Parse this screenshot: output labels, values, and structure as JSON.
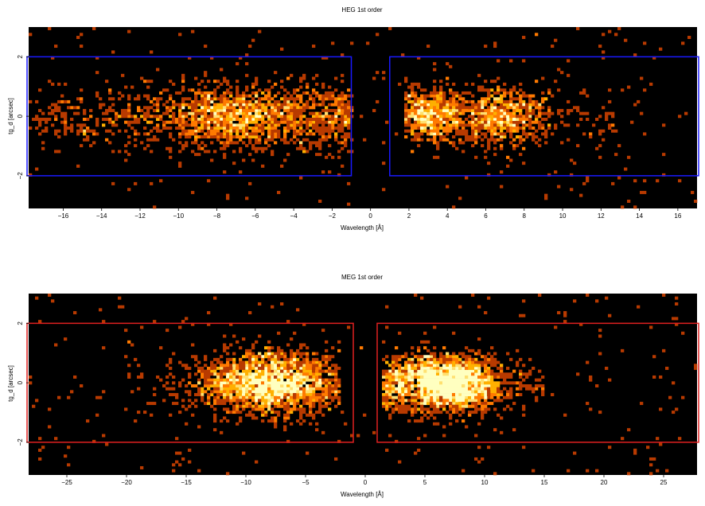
{
  "chart_data": [
    {
      "type": "heatmap",
      "title": "HEG 1st order",
      "xlabel": "Wavelength [Å]",
      "ylabel": "tg_d [arcsec]",
      "xlim": [
        -17.8,
        17.0
      ],
      "ylim": [
        -3.1,
        3.0
      ],
      "x_ticks": [
        -16,
        -14,
        -12,
        -10,
        -8,
        -6,
        -4,
        -2,
        0,
        2,
        4,
        6,
        8,
        10,
        12,
        14,
        16
      ],
      "y_ticks": [
        -2,
        0,
        2
      ],
      "background": "#000000",
      "colormap": [
        "#b83a00",
        "#ff7a00",
        "#ffb000",
        "#ffe070",
        "#ffffc0"
      ],
      "extraction_regions": {
        "color": "#1a1aff",
        "boxes": [
          {
            "x0": -18.0,
            "x1": -1.0,
            "y0": -2.0,
            "y1": 2.0
          },
          {
            "x0": 1.0,
            "x1": 17.5,
            "y0": -2.0,
            "y1": 2.0
          }
        ]
      },
      "clusters": [
        {
          "x0": -17.8,
          "x1": -1.0,
          "peak": -4.5,
          "width": 5.0,
          "ysd": 0.55,
          "n": 1400
        },
        {
          "x0": -10.0,
          "x1": -5.0,
          "peak": -7.5,
          "width": 2.0,
          "ysd": 0.5,
          "n": 450
        },
        {
          "x0": 1.8,
          "x1": 5.5,
          "peak": 3.0,
          "width": 1.2,
          "ysd": 0.45,
          "n": 700
        },
        {
          "x0": 5.2,
          "x1": 9.5,
          "peak": 6.8,
          "width": 1.2,
          "ysd": 0.45,
          "n": 650
        },
        {
          "x0": 9.0,
          "x1": 13.0,
          "peak": 10.5,
          "width": 2.5,
          "ysd": 0.6,
          "n": 70
        }
      ]
    },
    {
      "type": "heatmap",
      "title": "MEG 1st order",
      "xlabel": "Wavelength [Å]",
      "ylabel": "tg_d [arcsec]",
      "xlim": [
        -28.2,
        27.8
      ],
      "ylim": [
        -3.1,
        3.0
      ],
      "x_ticks": [
        -25,
        -20,
        -15,
        -10,
        -5,
        0,
        5,
        10,
        15,
        20,
        25
      ],
      "y_ticks": [
        -2,
        0,
        2
      ],
      "background": "#000000",
      "colormap": [
        "#b83a00",
        "#ff7a00",
        "#ffb000",
        "#ffe070",
        "#ffffc0"
      ],
      "extraction_regions": {
        "color": "#e02020",
        "boxes": [
          {
            "x0": -29.0,
            "x1": -1.0,
            "y0": -2.0,
            "y1": 2.0
          },
          {
            "x0": 1.0,
            "x1": 29.0,
            "y0": -2.0,
            "y1": 2.0
          }
        ]
      },
      "clusters": [
        {
          "x0": -20.0,
          "x1": -2.0,
          "peak": -8.0,
          "width": 3.0,
          "ysd": 0.5,
          "n": 2200
        },
        {
          "x0": 1.5,
          "x1": 6.0,
          "peak": 3.5,
          "width": 1.8,
          "ysd": 0.5,
          "n": 700
        },
        {
          "x0": 4.5,
          "x1": 15.0,
          "peak": 7.3,
          "width": 2.0,
          "ysd": 0.45,
          "n": 1900
        }
      ]
    }
  ]
}
